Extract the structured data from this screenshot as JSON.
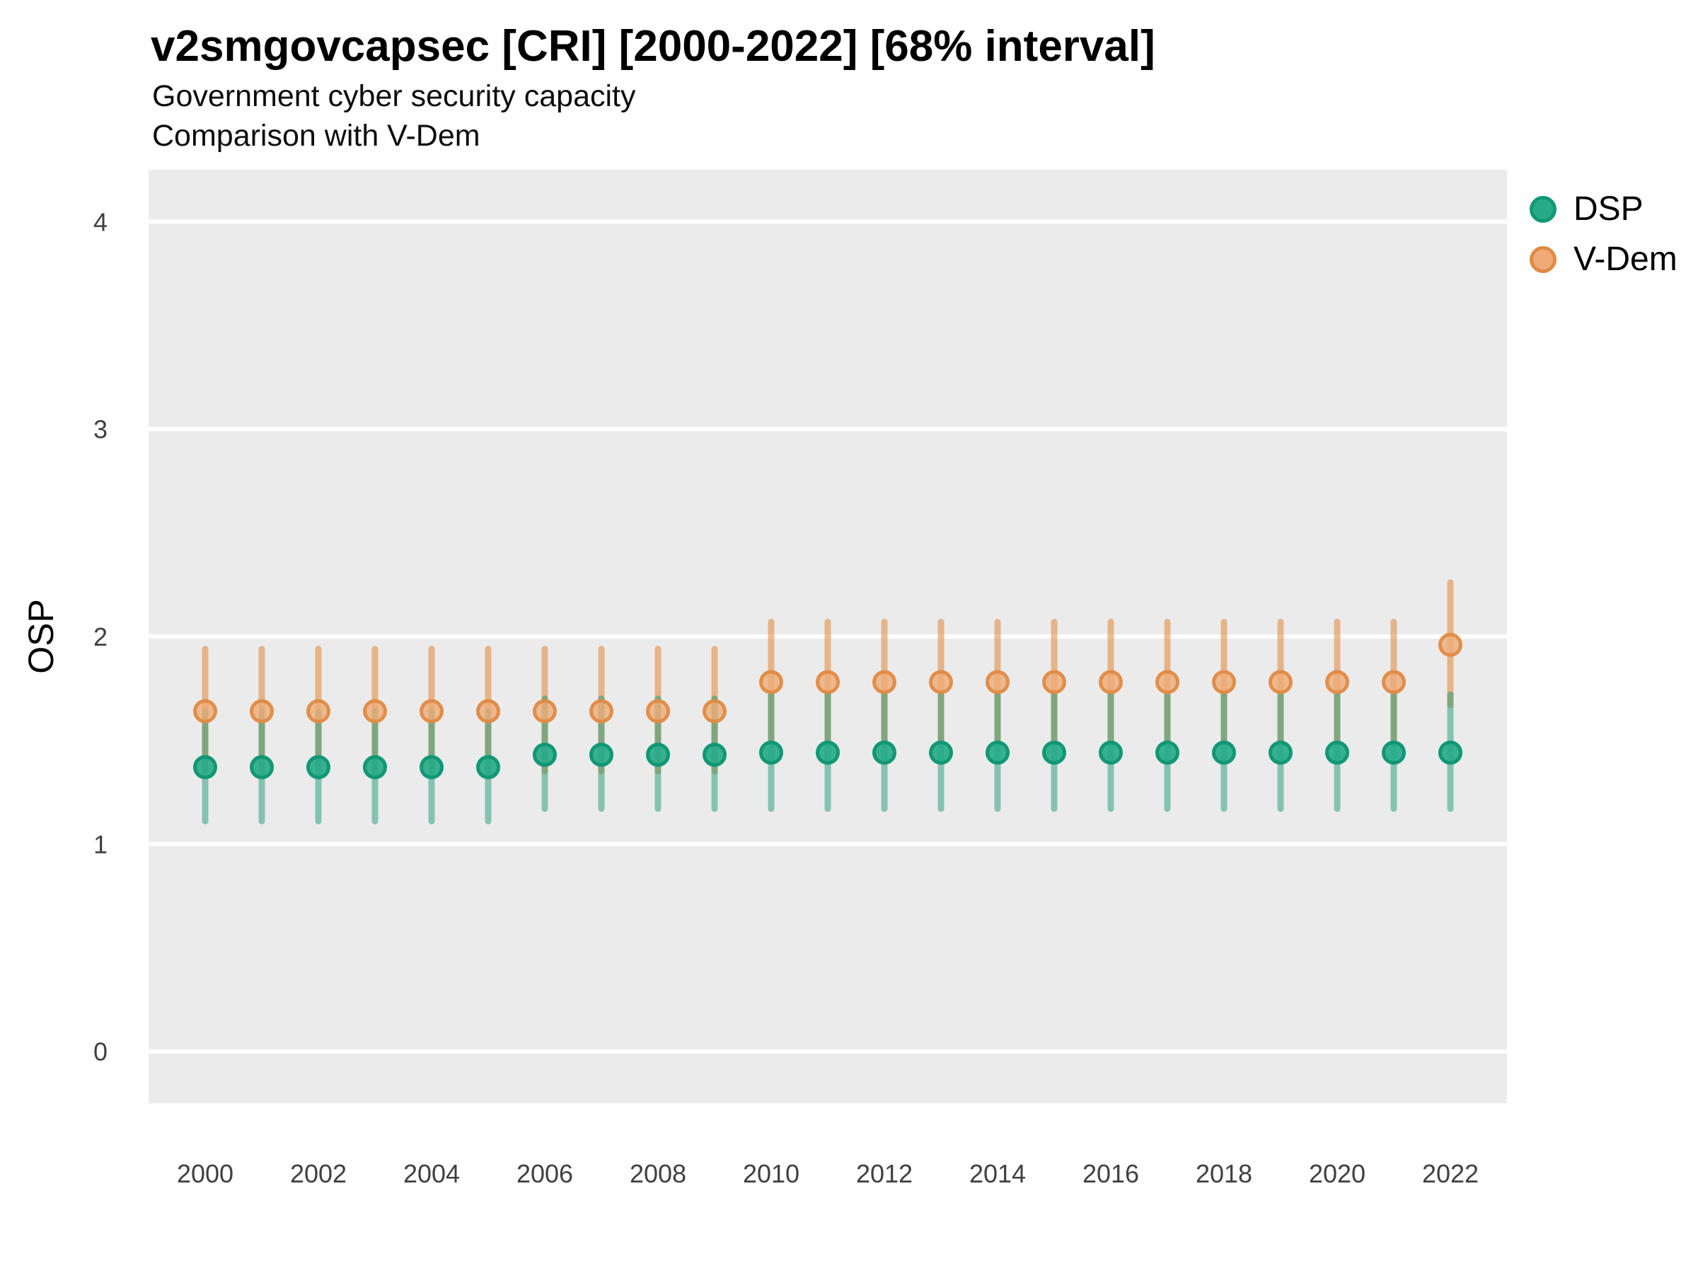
{
  "title": "v2smgovcapsec [CRI] [2000-2022] [68% interval]",
  "subtitle1": "Government cyber security capacity",
  "subtitle2": "Comparison with V-Dem",
  "y_axis": {
    "label": "OSP",
    "ticks": [
      4,
      3,
      2,
      1,
      0
    ],
    "range": [
      -0.25,
      4.25
    ]
  },
  "x_axis": {
    "label": "",
    "ticks": [
      2000,
      2002,
      2004,
      2006,
      2008,
      2010,
      2012,
      2014,
      2016,
      2018,
      2020,
      2022
    ],
    "range": [
      1999,
      2023
    ]
  },
  "legend": {
    "items": [
      {
        "label": "DSP"
      },
      {
        "label": "V-Dem"
      }
    ]
  },
  "colors": {
    "panel": "#ebebeb",
    "grid": "#ffffff",
    "title_text": "#000000",
    "tick_text": "#404040",
    "series": [
      {
        "name": "DSP",
        "fill": "#27ab87",
        "stroke": "#119776",
        "line": "rgba(18,150,112,0.48)",
        "fill_opacity": 0.92,
        "stroke_opacity": 1.0
      },
      {
        "name": "V-Dem",
        "fill": "#eeab77",
        "stroke": "#e08a44",
        "line": "rgba(224,135,56,0.55)",
        "fill_opacity": 0.8,
        "stroke_opacity": 0.95
      }
    ]
  },
  "chart_data": {
    "type": "pointrange",
    "title": "v2smgovcapsec [CRI] [2000-2022] [68% interval]",
    "subtitle": [
      "Government cyber security capacity",
      "Comparison with V-Dem"
    ],
    "interval": "68%",
    "xlabel": "",
    "ylabel": "OSP",
    "xlim": [
      1999,
      2023
    ],
    "ylim": [
      -0.25,
      4.25
    ],
    "grid": "major-horizontal-white-on-gray",
    "legend_position": "right",
    "x": [
      2000,
      2001,
      2002,
      2003,
      2004,
      2005,
      2006,
      2007,
      2008,
      2009,
      2010,
      2011,
      2012,
      2013,
      2014,
      2015,
      2016,
      2017,
      2018,
      2019,
      2020,
      2021,
      2022
    ],
    "series": [
      {
        "name": "DSP",
        "values": [
          1.37,
          1.37,
          1.37,
          1.37,
          1.37,
          1.37,
          1.43,
          1.43,
          1.43,
          1.43,
          1.44,
          1.44,
          1.44,
          1.44,
          1.44,
          1.44,
          1.44,
          1.44,
          1.44,
          1.44,
          1.44,
          1.44,
          1.44
        ],
        "lower": [
          1.11,
          1.11,
          1.11,
          1.11,
          1.11,
          1.11,
          1.17,
          1.17,
          1.17,
          1.17,
          1.17,
          1.17,
          1.17,
          1.17,
          1.17,
          1.17,
          1.17,
          1.17,
          1.17,
          1.17,
          1.17,
          1.17,
          1.17
        ],
        "upper": [
          1.64,
          1.64,
          1.64,
          1.64,
          1.64,
          1.64,
          1.7,
          1.7,
          1.7,
          1.7,
          1.72,
          1.72,
          1.72,
          1.72,
          1.72,
          1.72,
          1.72,
          1.72,
          1.72,
          1.72,
          1.72,
          1.72,
          1.72
        ]
      },
      {
        "name": "V-Dem",
        "values": [
          1.64,
          1.64,
          1.64,
          1.64,
          1.64,
          1.64,
          1.64,
          1.64,
          1.64,
          1.64,
          1.78,
          1.78,
          1.78,
          1.78,
          1.78,
          1.78,
          1.78,
          1.78,
          1.78,
          1.78,
          1.78,
          1.78,
          1.96
        ],
        "lower": [
          1.35,
          1.35,
          1.35,
          1.35,
          1.35,
          1.35,
          1.35,
          1.35,
          1.35,
          1.35,
          1.49,
          1.49,
          1.49,
          1.49,
          1.49,
          1.49,
          1.49,
          1.49,
          1.49,
          1.49,
          1.49,
          1.49,
          1.67
        ],
        "upper": [
          1.94,
          1.94,
          1.94,
          1.94,
          1.94,
          1.94,
          1.94,
          1.94,
          1.94,
          1.94,
          2.07,
          2.07,
          2.07,
          2.07,
          2.07,
          2.07,
          2.07,
          2.07,
          2.07,
          2.07,
          2.07,
          2.07,
          2.26
        ]
      }
    ]
  }
}
